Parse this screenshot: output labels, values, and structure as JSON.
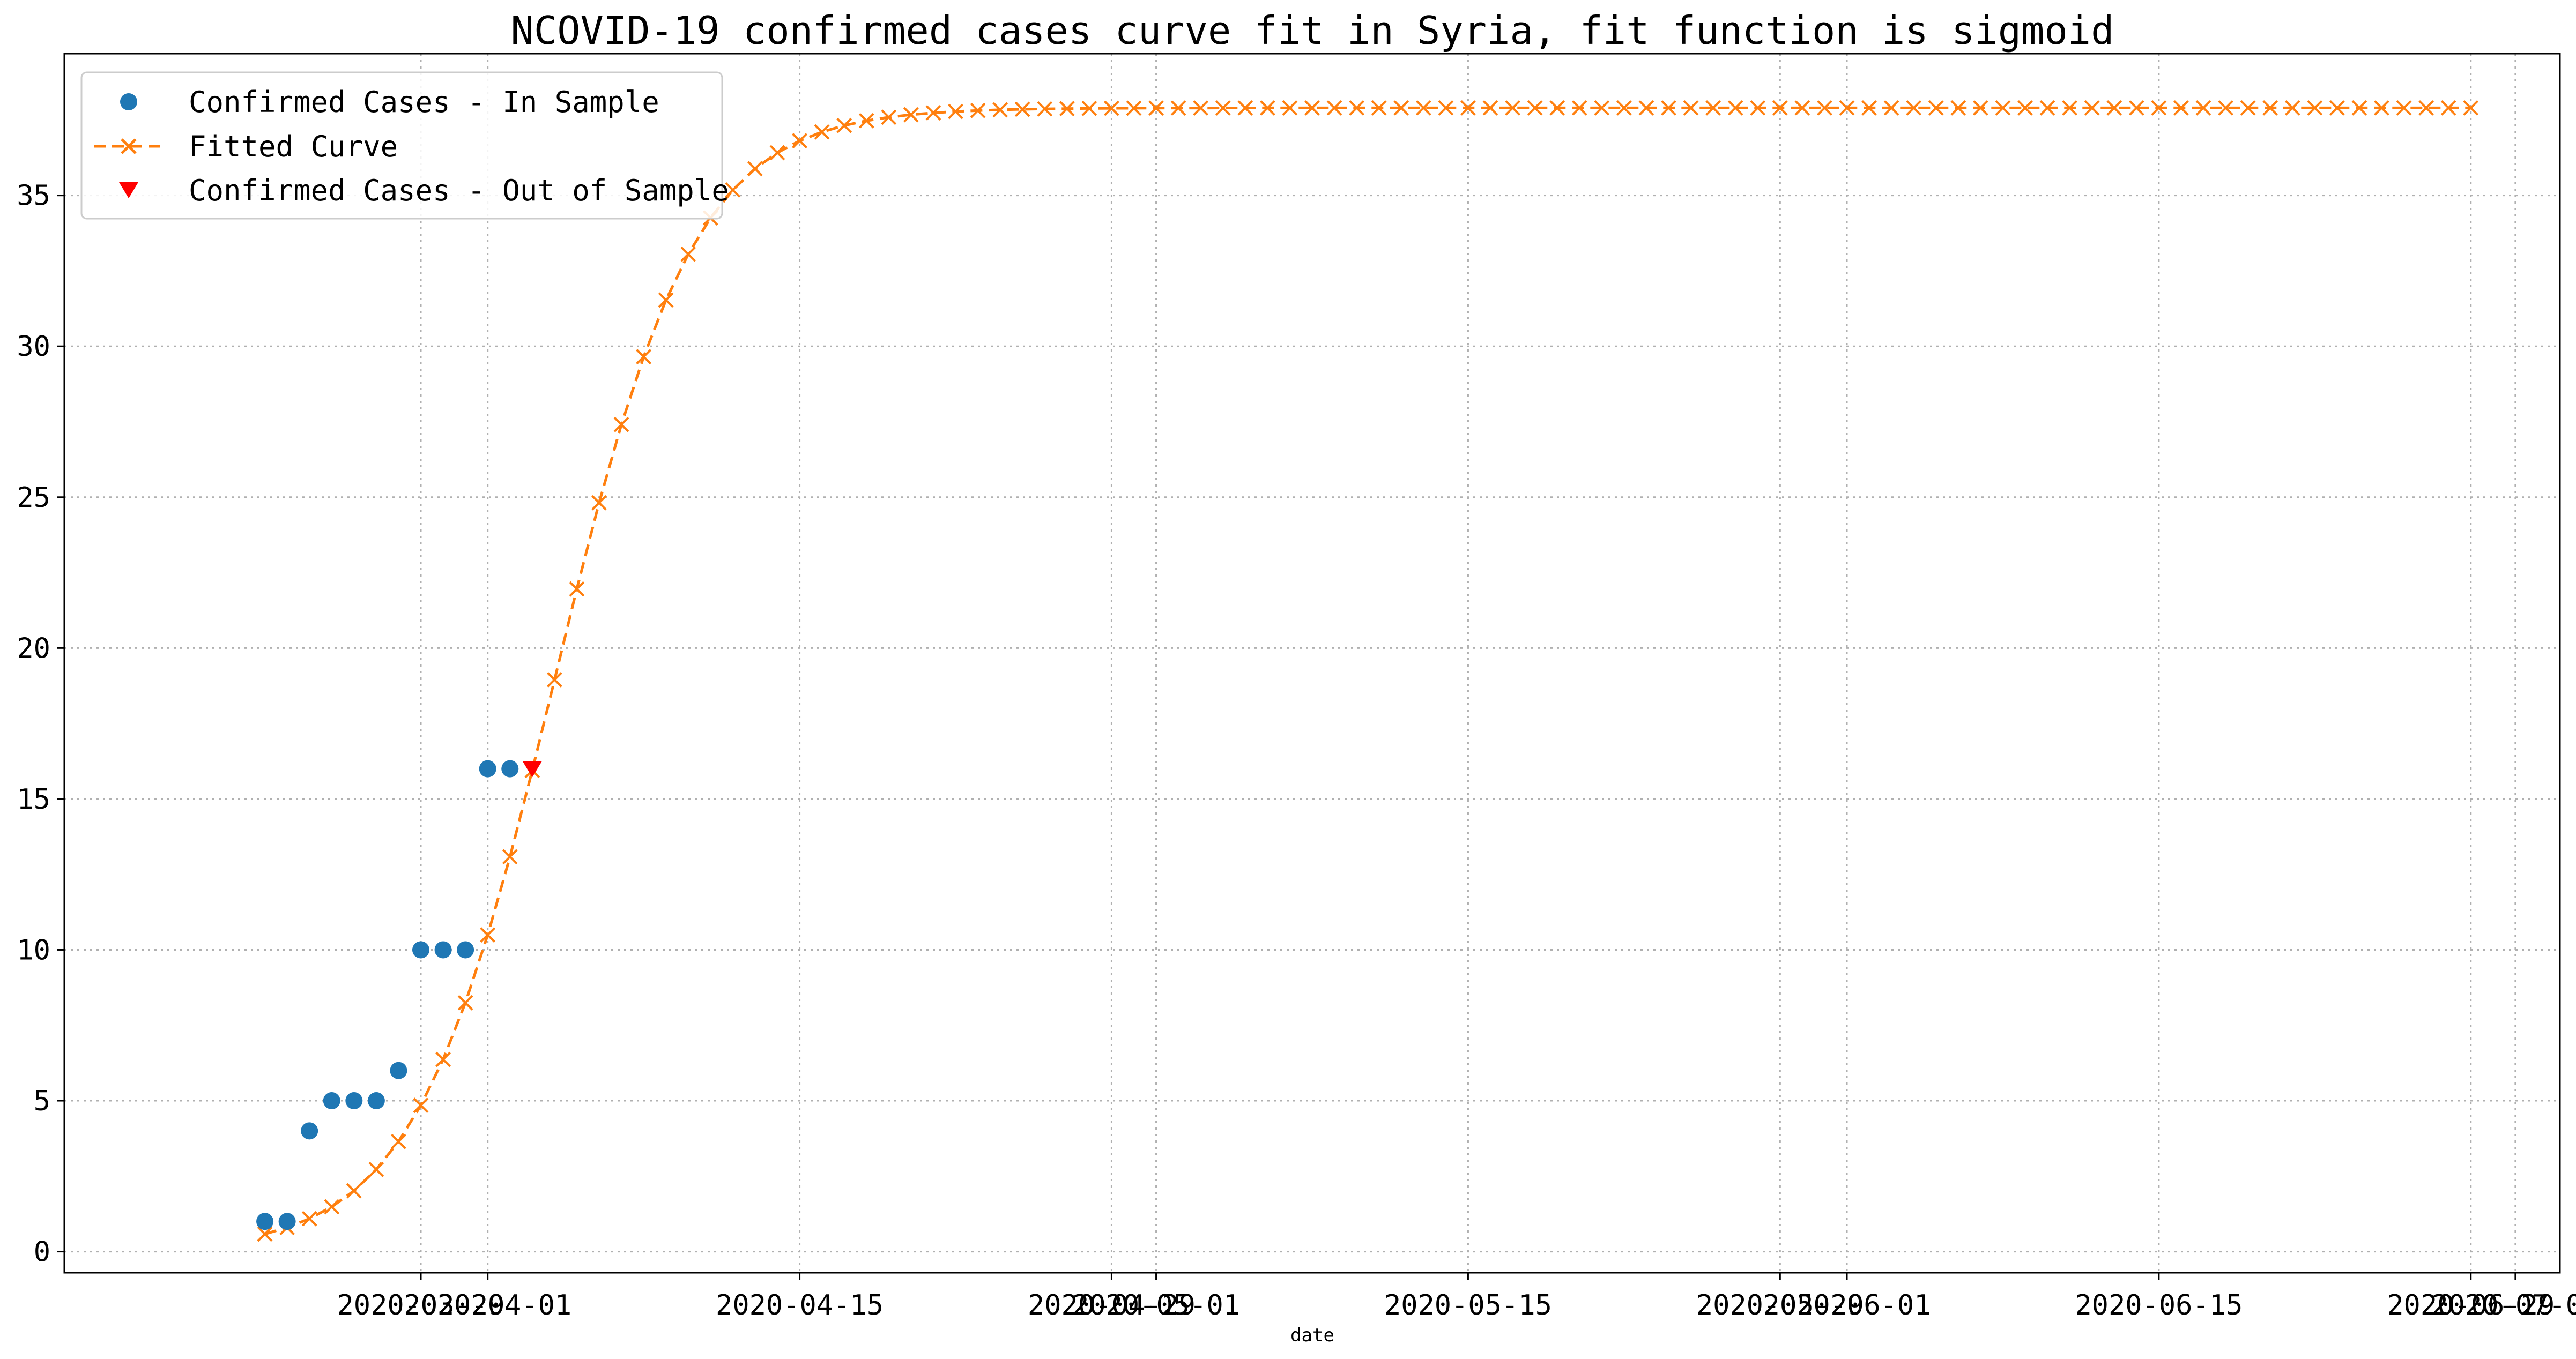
{
  "chart_data": {
    "type": "line",
    "title": "NCOVID-19 confirmed cases curve fit in Syria, fit function is sigmoid",
    "xlabel": "date",
    "ylabel": "",
    "x_range": [
      "2020-03-13",
      "2020-07-03"
    ],
    "ylim": [
      -0.7,
      39.7
    ],
    "grid": true,
    "legend_position": "top-left",
    "x_tick_labels": [
      "2020-03-29",
      "2020-04-01",
      "2020-04-15",
      "2020-04-29",
      "2020-05-01",
      "2020-05-15",
      "2020-05-29",
      "2020-06-01",
      "2020-06-15",
      "2020-06-29",
      "2020-07-01"
    ],
    "y_ticks": [
      0,
      5,
      10,
      15,
      20,
      25,
      30,
      35
    ],
    "series": [
      {
        "name": "Confirmed Cases - In Sample",
        "style": "markers-circle",
        "color": "#1f77b4",
        "x": [
          "2020-03-22",
          "2020-03-23",
          "2020-03-24",
          "2020-03-25",
          "2020-03-26",
          "2020-03-27",
          "2020-03-28",
          "2020-03-29",
          "2020-03-30",
          "2020-03-31",
          "2020-04-01",
          "2020-04-02"
        ],
        "values": [
          1,
          1,
          4,
          5,
          5,
          5,
          6,
          10,
          10,
          10,
          16,
          16
        ]
      },
      {
        "name": "Fitted Curve",
        "style": "dashed-line-x-markers",
        "color": "#ff7f0e",
        "model": "sigmoid",
        "params": {
          "L": 37.9,
          "k": 0.32,
          "x0": "2020-04-04"
        },
        "x_start": "2020-03-22",
        "x_end": "2020-06-29",
        "step_days": 1
      },
      {
        "name": "Confirmed Cases - Out of Sample",
        "style": "markers-triangle-down",
        "color": "#ff0000",
        "x": [
          "2020-04-03"
        ],
        "values": [
          16
        ]
      }
    ]
  }
}
